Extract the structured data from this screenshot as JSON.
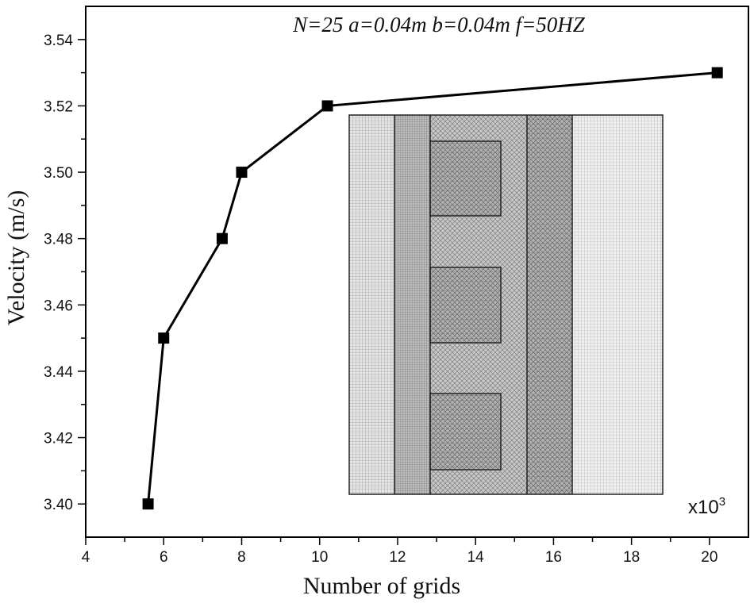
{
  "chart_data": {
    "type": "line",
    "title": "",
    "annotation": "N=25  a=0.04m b=0.04m f=50HZ",
    "xlabel": "Number of grids",
    "ylabel": "Velocity (m/s)",
    "x_multiplier": {
      "base": "x10",
      "exponent": "3"
    },
    "xlim": [
      4,
      21
    ],
    "ylim": [
      3.39,
      3.55
    ],
    "x_ticks": [
      4,
      6,
      8,
      10,
      12,
      14,
      16,
      18,
      20
    ],
    "y_ticks": [
      3.4,
      3.42,
      3.44,
      3.46,
      3.48,
      3.5,
      3.52,
      3.54
    ],
    "x_tick_labels": [
      "4",
      "6",
      "8",
      "10",
      "12",
      "14",
      "16",
      "18",
      "20"
    ],
    "y_tick_labels": [
      "3.40",
      "3.42",
      "3.44",
      "3.46",
      "3.48",
      "3.50",
      "3.52",
      "3.54"
    ],
    "series": [
      {
        "x": [
          5.6,
          6.0,
          7.5,
          8.0,
          10.2,
          20.2
        ],
        "y": [
          3.4,
          3.45,
          3.48,
          3.5,
          3.52,
          3.53
        ],
        "marker": "square",
        "color": "#000000"
      }
    ],
    "inset": {
      "description_icon": "mesh-grid-inset"
    }
  }
}
